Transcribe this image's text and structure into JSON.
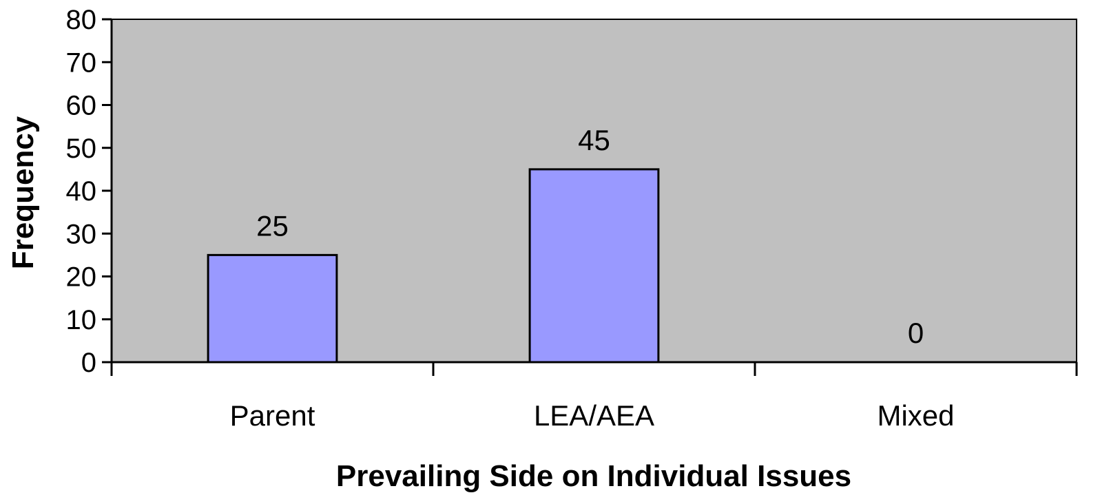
{
  "chart_data": {
    "type": "bar",
    "categories": [
      "Parent",
      "LEA/AEA",
      "Mixed"
    ],
    "values": [
      25,
      45,
      0
    ],
    "data_labels": [
      "25",
      "45",
      "0"
    ],
    "title": "",
    "xlabel": "Prevailing Side on Individual Issues",
    "ylabel": "Frequency",
    "ylim": [
      0,
      80
    ],
    "yticks": [
      "0",
      "10",
      "20",
      "30",
      "40",
      "50",
      "60",
      "70",
      "80"
    ],
    "grid": false,
    "legend": "none"
  },
  "colors": {
    "plot_background": "#c0c0c0",
    "bar_fill": "#9999ff",
    "bar_stroke": "#000000",
    "axis": "#000000"
  }
}
